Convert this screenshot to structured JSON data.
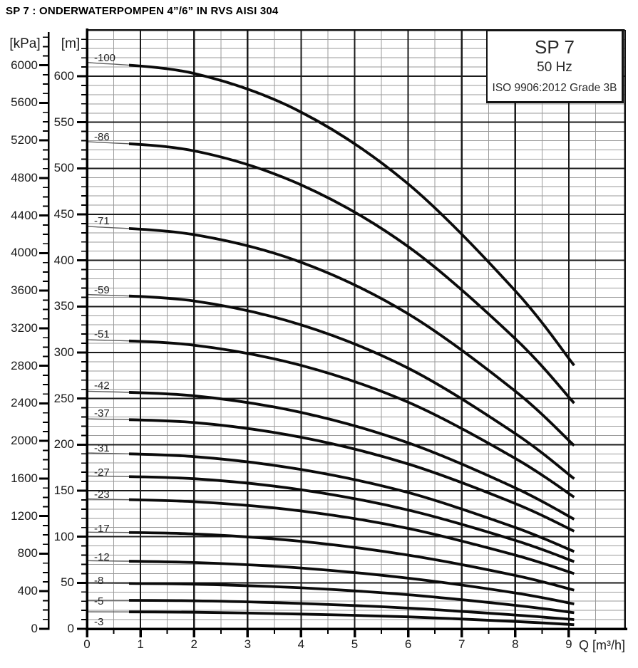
{
  "title": "SP 7 : ONDERWATERPOMPEN 4”/6” IN RVS AISI 304",
  "info_box": {
    "model": "SP 7",
    "frequency": "50 Hz",
    "standard": "ISO 9906:2012 Grade 3B"
  },
  "axes": {
    "pressure": {
      "unit": "[kPa]",
      "ticks": [
        6000,
        5600,
        5200,
        4800,
        4400,
        4000,
        3600,
        3200,
        2800,
        2400,
        2000,
        1600,
        1200,
        800,
        400,
        0
      ],
      "minor_step_kpa": 100
    },
    "head": {
      "unit": "[m]",
      "ticks": [
        600,
        550,
        500,
        450,
        400,
        350,
        300,
        250,
        200,
        150,
        100,
        50,
        0
      ],
      "minor_step_m": 10
    },
    "flow": {
      "unit": "Q [m³/h]",
      "ticks": [
        0,
        1,
        2,
        3,
        4,
        5,
        6,
        7,
        8,
        9
      ],
      "minor_step": 0.5
    }
  },
  "chart_data": {
    "type": "line",
    "title": "SP 7 submersible pump performance curves (head vs flow)",
    "xlabel": "Q [m³/h]",
    "ylabel": "[m] with secondary [kPa] scale",
    "xlim": [
      0,
      10
    ],
    "ylim": [
      0,
      650
    ],
    "grid": "on",
    "legend_position": "labels at curve start",
    "x": [
      0,
      2,
      4,
      6,
      8,
      9.1
    ],
    "series": [
      {
        "label": "-100",
        "heads_m": [
          615,
          603,
          561,
          483,
          367,
          286
        ],
        "label_at_m": 620
      },
      {
        "label": "-86",
        "heads_m": [
          529,
          519,
          482,
          415,
          315,
          245
        ],
        "label_at_m": 534
      },
      {
        "label": "-71",
        "heads_m": [
          437,
          428,
          398,
          342,
          258,
          199
        ],
        "label_at_m": 443
      },
      {
        "label": "-59",
        "heads_m": [
          363,
          356,
          330,
          283,
          212,
          163
        ],
        "label_at_m": 368
      },
      {
        "label": "-51",
        "heads_m": [
          314,
          308,
          286,
          246,
          185,
          143
        ],
        "label_at_m": 320
      },
      {
        "label": "-42",
        "heads_m": [
          258,
          253,
          235,
          202,
          153,
          119
        ],
        "label_at_m": 264
      },
      {
        "label": "-37",
        "heads_m": [
          228,
          224,
          208,
          179,
          136,
          106
        ],
        "label_at_m": 234
      },
      {
        "label": "-31",
        "heads_m": [
          191,
          187,
          173,
          148,
          110,
          84
        ],
        "label_at_m": 196
      },
      {
        "label": "-27",
        "heads_m": [
          166,
          163,
          151,
          129,
          96,
          73
        ],
        "label_at_m": 170
      },
      {
        "label": "-23",
        "heads_m": [
          141,
          138,
          128,
          109,
          80,
          60
        ],
        "label_at_m": 146
      },
      {
        "label": "-17",
        "heads_m": [
          105,
          103,
          95,
          80,
          58,
          42
        ],
        "label_at_m": 109
      },
      {
        "label": "-12",
        "heads_m": [
          74,
          72,
          66,
          55,
          39,
          27
        ],
        "label_at_m": 78
      },
      {
        "label": "-8",
        "heads_m": [
          49.5,
          48.5,
          44.5,
          37,
          25.5,
          17.5
        ],
        "label_at_m": 52
      },
      {
        "label": "-5",
        "heads_m": [
          31,
          30.5,
          27.5,
          22.5,
          15,
          10
        ],
        "label_at_m": 30
      },
      {
        "label": "-3",
        "heads_m": [
          18.5,
          18,
          16,
          13,
          8,
          4.5
        ],
        "label_at_m": 7
      }
    ]
  },
  "colors": {
    "curve": "#0b0b0b",
    "curve_leadin": "#5f5f5f",
    "grid_major": "#1b1b1b",
    "grid_minor": "#9a9a9a",
    "axis": "#000000",
    "text": "#1f1f1f"
  }
}
